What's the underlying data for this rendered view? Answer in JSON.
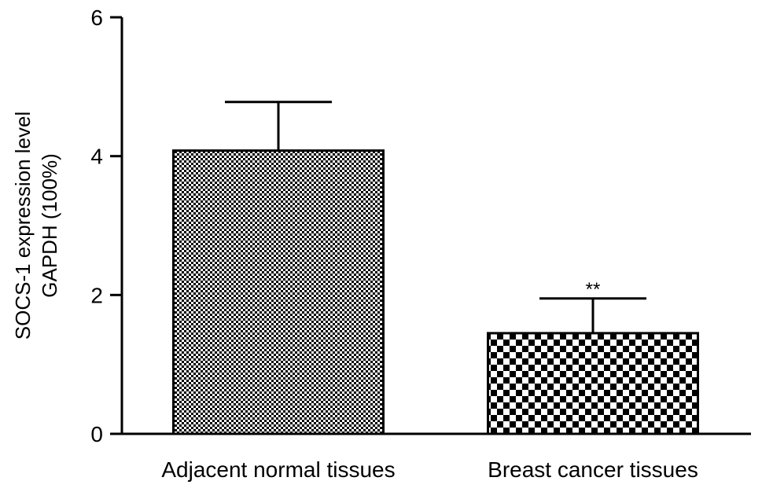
{
  "chart_data": {
    "type": "bar",
    "y_label": [
      "SOCS-1 expression level",
      "GAPDH (100%)"
    ],
    "categories": [
      "Adjacent normal tissues",
      "Breast cancer tissues"
    ],
    "values": [
      4.08,
      1.45
    ],
    "errors": [
      0.7,
      0.5
    ],
    "annotations": [
      null,
      "**"
    ],
    "color": "#000000",
    "ylim": [
      0,
      6
    ],
    "yticks": [
      0,
      2,
      4,
      6
    ],
    "grid": false
  }
}
